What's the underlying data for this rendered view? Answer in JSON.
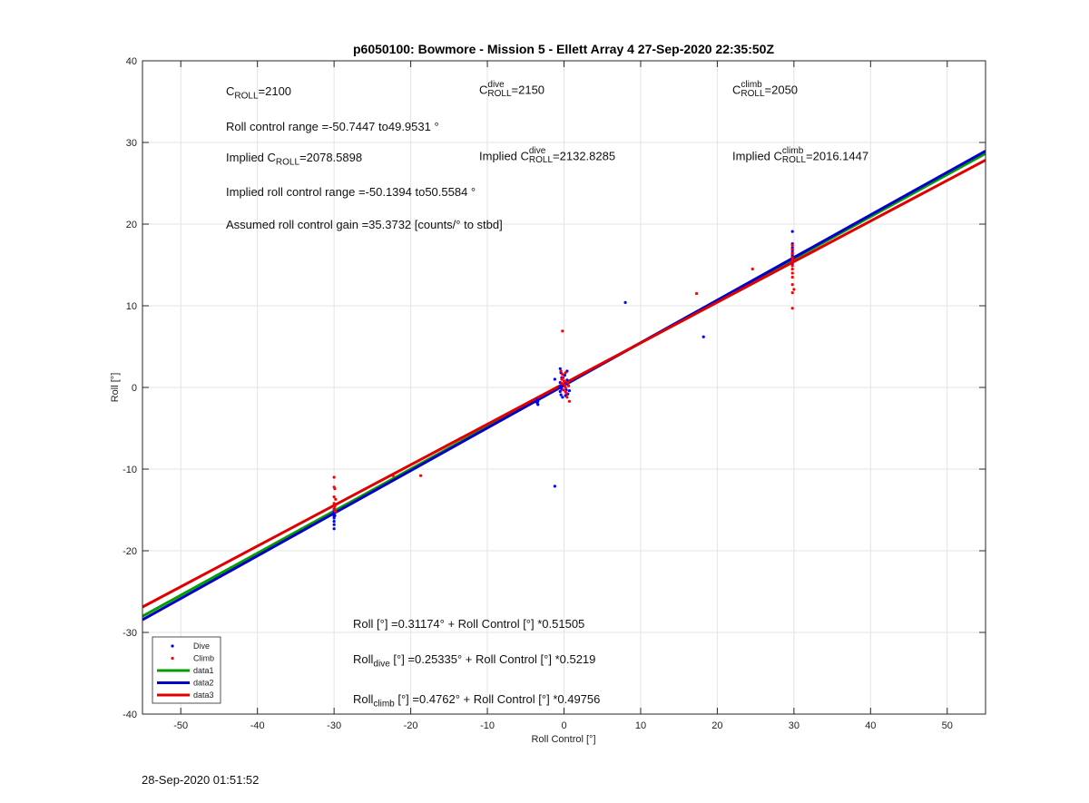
{
  "chart_data": {
    "type": "scatter",
    "title": "p6050100: Bowmore - Mission 5 - Ellett Array 4 27-Sep-2020 22:35:50Z",
    "xlabel": "Roll Control [°]",
    "ylabel": "Roll [°]",
    "xlim": [
      -55,
      55
    ],
    "ylim": [
      -40,
      40
    ],
    "xticks": [
      -50,
      -40,
      -30,
      -20,
      -10,
      0,
      10,
      20,
      30,
      40,
      50
    ],
    "yticks": [
      -40,
      -30,
      -20,
      -10,
      0,
      10,
      20,
      30,
      40
    ],
    "grid": true,
    "legend_position": "bottom-left",
    "series": [
      {
        "name": "Dive",
        "kind": "points",
        "color": "#0000ff",
        "points": [
          [
            -30,
            -17.3
          ],
          [
            -30,
            -16.8
          ],
          [
            -30,
            -16.4
          ],
          [
            -30,
            -16.0
          ],
          [
            -30,
            -15.8
          ],
          [
            -30,
            -15.6
          ],
          [
            -30,
            -15.4
          ],
          [
            -30,
            -15.2
          ],
          [
            -30,
            -15.0
          ],
          [
            -30,
            -14.9
          ],
          [
            -30.1,
            -15.5
          ],
          [
            -29.9,
            -15.7
          ],
          [
            -3.5,
            -1.5
          ],
          [
            -3.4,
            -1.7
          ],
          [
            -3.5,
            -1.9
          ],
          [
            -3.4,
            -2.1
          ],
          [
            -1.2,
            -12.1
          ],
          [
            -1.2,
            1.0
          ],
          [
            -0.5,
            2.3
          ],
          [
            -0.4,
            1.8
          ],
          [
            -0.3,
            1.2
          ],
          [
            -0.5,
            0.6
          ],
          [
            -0.4,
            0.2
          ],
          [
            -0.3,
            -0.2
          ],
          [
            -0.5,
            -0.5
          ],
          [
            -0.4,
            -0.9
          ],
          [
            -0.2,
            -1.2
          ],
          [
            0.2,
            0.4
          ],
          [
            0.3,
            -0.3
          ],
          [
            0.5,
            -0.8
          ],
          [
            0.4,
            0.9
          ],
          [
            0.1,
            1.5
          ],
          [
            -0.6,
            0.0
          ],
          [
            0.2,
            -1.0
          ],
          [
            0.7,
            -0.4
          ],
          [
            0.4,
            2.0
          ],
          [
            8,
            10.4
          ],
          [
            18.2,
            6.2
          ],
          [
            29.8,
            19.1
          ],
          [
            29.8,
            17.6
          ],
          [
            29.8,
            17.1
          ],
          [
            29.8,
            16.8
          ],
          [
            29.8,
            16.5
          ],
          [
            29.8,
            16.2
          ],
          [
            29.8,
            16.0
          ],
          [
            29.8,
            15.8
          ],
          [
            29.8,
            15.5
          ],
          [
            29.8,
            15.2
          ]
        ]
      },
      {
        "name": "Climb",
        "kind": "points",
        "color": "#ff0000",
        "points": [
          [
            -30,
            -11.0
          ],
          [
            -30,
            -12.2
          ],
          [
            -29.9,
            -12.4
          ],
          [
            -30,
            -13.4
          ],
          [
            -29.8,
            -13.7
          ],
          [
            -30,
            -14.2
          ],
          [
            -29.9,
            -14.6
          ],
          [
            -30,
            -15.0
          ],
          [
            -29.8,
            -15.2
          ],
          [
            -22.3,
            -10.8
          ],
          [
            -18.7,
            -10.8
          ],
          [
            -0.2,
            6.9
          ],
          [
            -0.4,
            2.0
          ],
          [
            -0.2,
            1.6
          ],
          [
            -0.1,
            1.2
          ],
          [
            0.0,
            0.8
          ],
          [
            -0.3,
            0.5
          ],
          [
            0.1,
            0.3
          ],
          [
            0.2,
            0.0
          ],
          [
            -0.1,
            -0.3
          ],
          [
            0.3,
            -0.7
          ],
          [
            0.2,
            1.8
          ],
          [
            -0.3,
            1.0
          ],
          [
            0.5,
            0.6
          ],
          [
            0.4,
            -1.2
          ],
          [
            0.7,
            -1.7
          ],
          [
            0.6,
            0.2
          ],
          [
            0.2,
            -0.5
          ],
          [
            17.3,
            11.5
          ],
          [
            24.6,
            14.5
          ],
          [
            29.8,
            17.4
          ],
          [
            29.8,
            16.9
          ],
          [
            29.8,
            16.4
          ],
          [
            29.8,
            15.9
          ],
          [
            29.8,
            15.6
          ],
          [
            29.8,
            15.3
          ],
          [
            29.8,
            14.9
          ],
          [
            29.8,
            14.5
          ],
          [
            29.8,
            14.0
          ],
          [
            29.8,
            13.5
          ],
          [
            29.8,
            12.6
          ],
          [
            30.0,
            12.0
          ],
          [
            29.8,
            11.6
          ],
          [
            29.8,
            9.7
          ]
        ]
      },
      {
        "name": "data1",
        "kind": "line",
        "color": "#00a000",
        "intercept": 0.31174,
        "slope": 0.51505
      },
      {
        "name": "data2",
        "kind": "line",
        "color": "#0000c8",
        "intercept": 0.25335,
        "slope": 0.5219
      },
      {
        "name": "data3",
        "kind": "line",
        "color": "#e00000",
        "intercept": 0.4762,
        "slope": 0.49756
      }
    ]
  },
  "annotations": {
    "croll_base": "C",
    "croll_sub": "ROLL",
    "croll_val": "=2100",
    "dive_base": "C",
    "dive_sup": "dive",
    "dive_sub": "ROLL",
    "dive_val": "=2150",
    "climb_base": "C",
    "climb_sup": "climb",
    "climb_sub": "ROLL",
    "climb_val": "=2050",
    "range_text": "Roll control range =-50.7447 to49.9531 °",
    "implied_prefix": "Implied C",
    "implied_sub": "ROLL",
    "implied_val": "=2078.5898",
    "implied_dive_prefix": "Implied C",
    "implied_dive_sup": "dive",
    "implied_dive_sub": "ROLL",
    "implied_dive_val": "=2132.8285",
    "implied_climb_prefix": "Implied C",
    "implied_climb_sup": "climb",
    "implied_climb_sub": "ROLL",
    "implied_climb_val": "=2016.1447",
    "implied_range_text": "Implied roll control range =-50.1394 to50.5584 °",
    "gain_text": "Assumed roll control gain =35.3732 [counts/° to stbd]",
    "fit_all_text": "Roll [°] =0.31174° + Roll Control [°] *0.51505",
    "fit_dive_base": "Roll",
    "fit_dive_sub": "dive",
    "fit_dive_rest": " [°] =0.25335° + Roll Control [°] *0.5219",
    "fit_climb_base": "Roll",
    "fit_climb_sub": "climb",
    "fit_climb_rest": " [°] =0.4762° + Roll Control [°] *0.49756"
  },
  "timestamp": "28-Sep-2020 01:51:52"
}
